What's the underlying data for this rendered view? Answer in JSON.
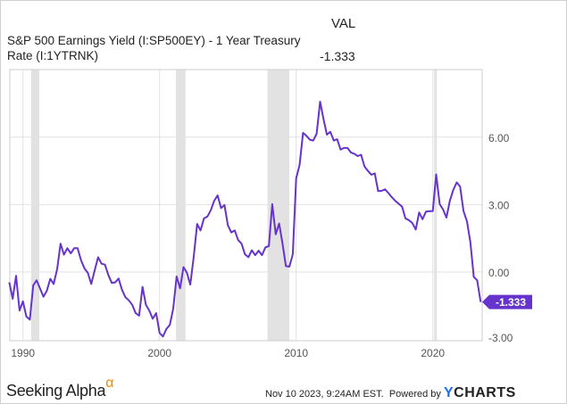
{
  "header": {
    "value_col": "VAL",
    "series_title": "S&P 500 Earnings Yield (I:SP500EY) - 1 Year Treasury Rate (I:1YTRNK)",
    "current_value": "-1.333"
  },
  "footer": {
    "brand": "Seeking Alpha",
    "brand_mark": "α",
    "timestamp": "Nov 10 2023, 9:24AM EST.",
    "powered_by": "Powered by",
    "provider_y": "Y",
    "provider_rest": "CHARTS"
  },
  "colors": {
    "line": "#6633cc",
    "recession": "#e2e2e2",
    "grid": "#e2e2e2"
  },
  "chart_data": {
    "type": "line",
    "title": "S&P 500 Earnings Yield (I:SP500EY) - 1 Year Treasury Rate (I:1YTRNK)",
    "xlabel": "",
    "ylabel": "",
    "x_ticks": [
      "1990",
      "2000",
      "2010",
      "2020"
    ],
    "y_ticks": [
      "6.00",
      "3.00",
      "0.00",
      "-3.00"
    ],
    "ylim": [
      -3,
      7.9
    ],
    "xlim": [
      1989,
      2023.6
    ],
    "grid": true,
    "last_value_label": "-1.333",
    "recessions": [
      [
        1990.6,
        1991.2
      ],
      [
        2001.2,
        2001.9
      ],
      [
        2007.9,
        2009.5
      ],
      [
        2020.1,
        2020.3
      ]
    ],
    "x": [
      1989,
      1989.25,
      1989.5,
      1989.75,
      1990,
      1990.25,
      1990.5,
      1990.75,
      1991,
      1991.25,
      1991.5,
      1991.75,
      1992,
      1992.25,
      1992.5,
      1992.75,
      1993,
      1993.25,
      1993.5,
      1993.75,
      1994,
      1994.25,
      1994.5,
      1994.75,
      1995,
      1995.25,
      1995.5,
      1995.75,
      1996,
      1996.25,
      1996.5,
      1996.75,
      1997,
      1997.25,
      1997.5,
      1997.75,
      1998,
      1998.25,
      1998.5,
      1998.75,
      1999,
      1999.25,
      1999.5,
      1999.75,
      2000,
      2000.25,
      2000.5,
      2000.75,
      2001,
      2001.25,
      2001.5,
      2001.75,
      2002,
      2002.25,
      2002.5,
      2002.75,
      2003,
      2003.25,
      2003.5,
      2003.75,
      2004,
      2004.25,
      2004.5,
      2004.75,
      2005,
      2005.25,
      2005.5,
      2005.75,
      2006,
      2006.25,
      2006.5,
      2006.75,
      2007,
      2007.25,
      2007.5,
      2007.75,
      2008,
      2008.25,
      2008.5,
      2008.75,
      2009,
      2009.25,
      2009.5,
      2009.75,
      2010,
      2010.25,
      2010.5,
      2010.75,
      2011,
      2011.25,
      2011.5,
      2011.75,
      2012,
      2012.25,
      2012.5,
      2012.75,
      2013,
      2013.25,
      2013.5,
      2013.75,
      2014,
      2014.25,
      2014.5,
      2014.75,
      2015,
      2015.25,
      2015.5,
      2015.75,
      2016,
      2016.25,
      2016.5,
      2016.75,
      2017,
      2017.25,
      2017.5,
      2017.75,
      2018,
      2018.25,
      2018.5,
      2018.75,
      2019,
      2019.25,
      2019.5,
      2019.75,
      2020,
      2020.25,
      2020.5,
      2020.75,
      2021,
      2021.25,
      2021.5,
      2021.75,
      2022,
      2022.25,
      2022.5,
      2022.75,
      2023,
      2023.25,
      2023.5
    ],
    "values": [
      -0.46,
      -1.19,
      -0.17,
      -1.72,
      -1.3,
      -1.98,
      -2.12,
      -0.6,
      -0.37,
      -0.73,
      -1.1,
      -0.83,
      -0.3,
      -0.53,
      0.13,
      1.26,
      0.77,
      1.06,
      0.83,
      1.06,
      1.06,
      0.53,
      0.16,
      -0.04,
      -0.53,
      0.07,
      0.66,
      0.37,
      0.33,
      -0.13,
      -0.49,
      -0.46,
      -0.29,
      -0.79,
      -1.12,
      -1.26,
      -1.46,
      -1.83,
      -1.94,
      -0.66,
      -1.46,
      -1.72,
      -2.08,
      -1.83,
      -2.71,
      -2.87,
      -2.54,
      -2.35,
      -1.63,
      -0.2,
      -0.73,
      0.22,
      -0.03,
      -0.56,
      0.66,
      2.14,
      1.85,
      2.38,
      2.47,
      2.75,
      3.17,
      3.41,
      2.84,
      2.98,
      2.08,
      1.76,
      1.85,
      1.42,
      1.26,
      0.79,
      0.66,
      0.97,
      0.75,
      0.95,
      0.75,
      1.1,
      1.15,
      3.02,
      1.68,
      2.16,
      1.26,
      0.26,
      0.24,
      0.79,
      4.17,
      4.76,
      6.19,
      6.06,
      5.89,
      5.85,
      6.15,
      7.58,
      6.81,
      6.11,
      6.24,
      5.85,
      5.91,
      5.45,
      5.52,
      5.52,
      5.32,
      5.26,
      5.16,
      5.22,
      4.7,
      4.5,
      4.33,
      4.39,
      3.6,
      3.61,
      3.68,
      3.51,
      3.33,
      3.17,
      3.04,
      2.91,
      2.38,
      2.31,
      2.18,
      1.89,
      2.65,
      2.35,
      2.69,
      2.71,
      2.71,
      4.34,
      3.02,
      2.78,
      2.42,
      3.17,
      3.66,
      3.99,
      3.8,
      2.71,
      2.25,
      1.32,
      -0.22,
      -0.37,
      -1.333
    ]
  }
}
